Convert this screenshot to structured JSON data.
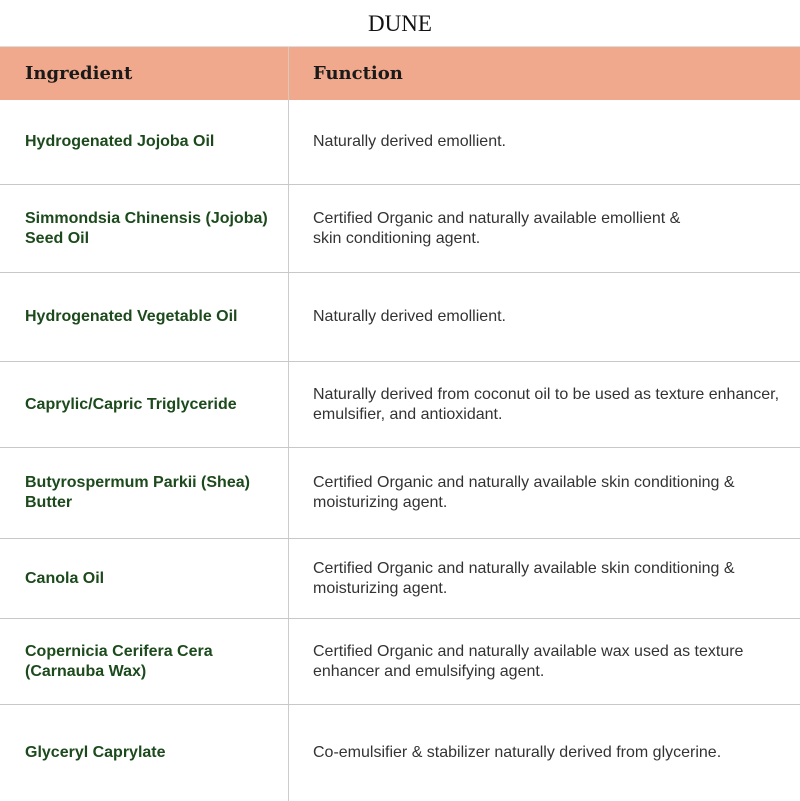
{
  "title": "DUNE",
  "header": {
    "ingredient": "Ingredient",
    "function": "Function"
  },
  "rows": [
    {
      "ingredient": "Hydrogenated Jojoba Oil",
      "function": "Naturally derived emollient."
    },
    {
      "ingredient": "Simmondsia Chinensis (Jojoba) Seed Oil",
      "function": "Certified Organic and naturally available emollient & skin conditioning agent."
    },
    {
      "ingredient": "Hydrogenated Vegetable Oil",
      "function": "Naturally derived emollient."
    },
    {
      "ingredient": "Caprylic/Capric Triglyceride",
      "function": "Naturally derived from coconut oil to be used as texture enhancer, emulsifier, and antioxidant."
    },
    {
      "ingredient": "Butyrospermum Parkii (Shea) Butter",
      "function": "Certified Organic and naturally available skin conditioning & moisturizing agent."
    },
    {
      "ingredient": "Canola Oil",
      "function": "Certified Organic and naturally available skin conditioning & moisturizing agent."
    },
    {
      "ingredient": "Copernicia Cerifera Cera (Carnauba Wax)",
      "function": "Certified Organic and naturally available wax used as texture enhancer and emulsifying agent."
    },
    {
      "ingredient": "Glyceryl Caprylate",
      "function": "Co-emulsifier & stabilizer naturally derived from glycerine."
    }
  ],
  "colors": {
    "header_bg": "#f0a98c",
    "ingredient_text": "#1c4a1c"
  }
}
